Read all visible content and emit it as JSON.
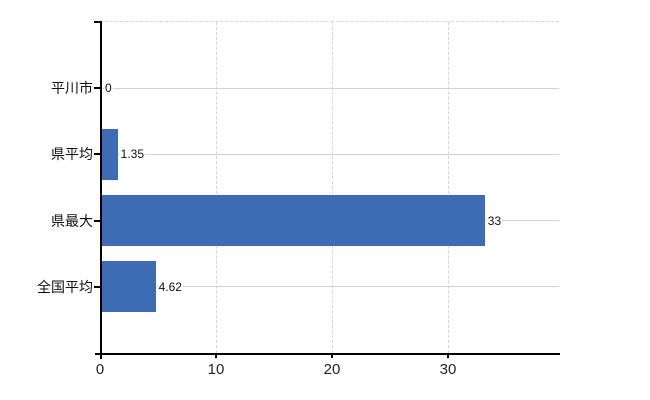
{
  "chart_data": {
    "type": "bar",
    "orientation": "horizontal",
    "title": "",
    "xlabel": "",
    "ylabel": "",
    "categories": [
      "平川市",
      "県平均",
      "県最大",
      "全国平均"
    ],
    "values": [
      0,
      1.35,
      33,
      4.62
    ],
    "value_labels": [
      "0",
      "1.35",
      "33",
      "4.62"
    ],
    "x_ticks": [
      0,
      10,
      20,
      30
    ],
    "x_tick_labels": [
      "0",
      "10",
      "20",
      "30"
    ],
    "xlim": [
      0,
      39.6
    ],
    "bar_color": "#3d6cb4",
    "axis_color": "#000000",
    "grid": true,
    "legend": "none"
  }
}
